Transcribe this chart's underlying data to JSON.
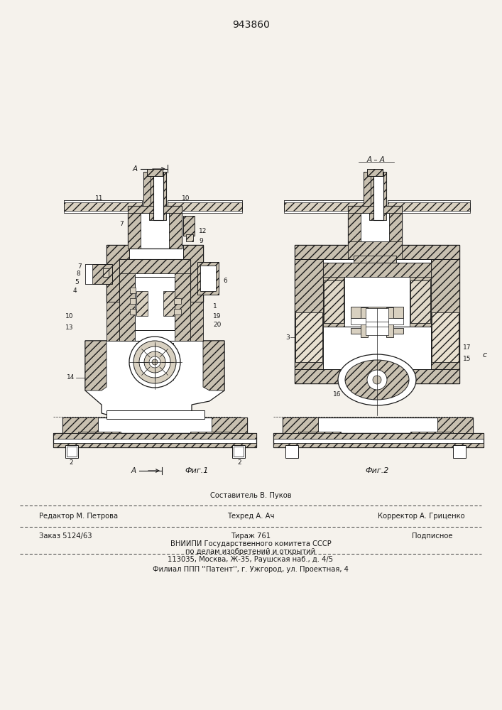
{
  "patent_number": "943860",
  "bg_color": "#f5f2ec",
  "text_color": "#1a1a1a",
  "hatch_color": "#333333",
  "footer": {
    "line1_left": "Редактор М. Петрова",
    "line1_center_top": "Составитель В. Пуков",
    "line1_center_bot": "Техред А. Ач",
    "line1_right": "Корректор А. Гриценко",
    "line2_left": "Заказ 5124/63",
    "line2_center": "Тираж 761",
    "line2_right": "Подписное",
    "line3": "ВНИИПИ Государственного комитета СССР",
    "line4": "по делам изобретений и открытий",
    "line5": "113035, Москва, Ж-35, Раушская наб., д. 4/5",
    "line6": "Филиал ППП ''Патент'', г. Ужгород, ул. Проектная, 4"
  },
  "fig1_label": "Фиг.1",
  "fig2_label": "Фиг.2"
}
